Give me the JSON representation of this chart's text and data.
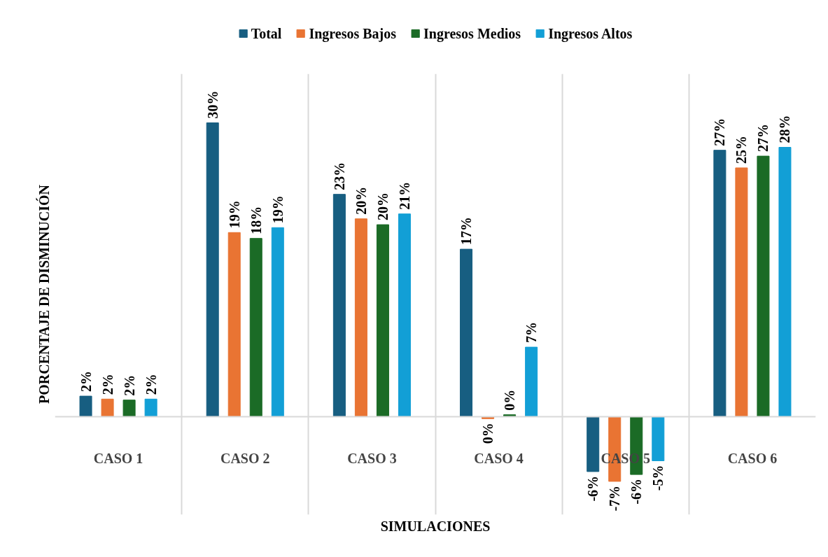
{
  "chart_data": {
    "type": "bar",
    "xlabel": "SIMULACIONES",
    "ylabel": "PORCENTAJE DE DISMINUCIÓN",
    "categories": [
      "CASO 1",
      "CASO 2",
      "CASO 3",
      "CASO 4",
      "CASO 5",
      "CASO 6"
    ],
    "series": [
      {
        "name": "Total",
        "color": "#175e81",
        "values": [
          2.1,
          30.0,
          22.7,
          17.1,
          -5.6,
          27.2
        ],
        "value_labels": [
          "2%",
          "30%",
          "23%",
          "17%",
          "-6%",
          "27%"
        ]
      },
      {
        "name": "Ingresos Bajos",
        "color": "#e97433",
        "values": [
          1.8,
          18.8,
          20.2,
          -0.2,
          -6.6,
          25.4
        ],
        "value_labels": [
          "2%",
          "19%",
          "20%",
          "0%",
          "-7%",
          "25%"
        ]
      },
      {
        "name": "Ingresos Medios",
        "color": "#1b6b26",
        "values": [
          1.7,
          18.2,
          19.6,
          0.2,
          -5.9,
          26.6
        ],
        "value_labels": [
          "2%",
          "18%",
          "20%",
          "0%",
          "-6%",
          "27%"
        ]
      },
      {
        "name": "Ingresos Altos",
        "color": "#129fd6",
        "values": [
          1.8,
          19.3,
          20.7,
          7.1,
          -4.5,
          27.5
        ],
        "value_labels": [
          "2%",
          "19%",
          "21%",
          "7%",
          "-5%",
          "28%"
        ]
      }
    ],
    "ylim": [
      -10,
      35
    ],
    "grid": "x",
    "legend": "top"
  }
}
